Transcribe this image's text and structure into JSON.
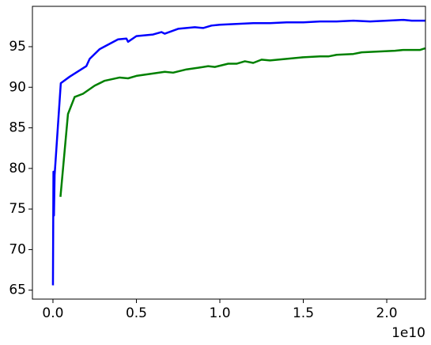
{
  "chart_data": {
    "type": "line",
    "x_offset_label": "1e10",
    "xlim": [
      -0.123,
      2.232
    ],
    "ylim": [
      63.9,
      99.97
    ],
    "xticks": [
      {
        "value": 0,
        "label": "0.0"
      },
      0.5,
      {
        "value": 1,
        "label": "1.0"
      },
      1.5,
      {
        "value": 2,
        "label": "2.0"
      }
    ],
    "yticks": [
      65,
      70,
      75,
      80,
      85,
      90,
      95
    ],
    "series": [
      {
        "color": "#0000ff",
        "x": [
          0,
          0.003,
          0.006,
          0.01,
          0.047,
          0.1,
          0.2,
          0.22,
          0.28,
          0.39,
          0.44,
          0.45,
          0.5,
          0.6,
          0.65,
          0.67,
          0.75,
          0.85,
          0.9,
          0.95,
          1.0,
          1.1,
          1.2,
          1.3,
          1.4,
          1.5,
          1.6,
          1.7,
          1.8,
          1.9,
          2.0,
          2.1,
          2.15,
          2.23
        ],
        "values": [
          65.6,
          79.6,
          74.2,
          79.2,
          90.5,
          91.3,
          92.6,
          93.5,
          94.7,
          95.9,
          96.0,
          95.6,
          96.3,
          96.5,
          96.8,
          96.6,
          97.2,
          97.4,
          97.3,
          97.6,
          97.7,
          97.8,
          97.9,
          97.9,
          98.0,
          98.0,
          98.1,
          98.1,
          98.2,
          98.1,
          98.2,
          98.3,
          98.2,
          98.2
        ]
      },
      {
        "color": "#008000",
        "x": [
          0.045,
          0.09,
          0.13,
          0.18,
          0.25,
          0.31,
          0.4,
          0.45,
          0.5,
          0.6,
          0.67,
          0.72,
          0.8,
          0.87,
          0.93,
          0.97,
          1.05,
          1.1,
          1.15,
          1.2,
          1.25,
          1.3,
          1.4,
          1.5,
          1.6,
          1.65,
          1.7,
          1.8,
          1.85,
          1.95,
          2.05,
          2.1,
          2.17,
          2.2,
          2.23
        ],
        "values": [
          76.5,
          86.7,
          88.8,
          89.2,
          90.2,
          90.8,
          91.2,
          91.1,
          91.4,
          91.7,
          91.9,
          91.8,
          92.2,
          92.4,
          92.6,
          92.5,
          92.9,
          92.9,
          93.2,
          93.0,
          93.4,
          93.3,
          93.5,
          93.7,
          93.8,
          93.8,
          94.0,
          94.1,
          94.3,
          94.4,
          94.5,
          94.6,
          94.6,
          94.6,
          94.8
        ]
      }
    ]
  }
}
